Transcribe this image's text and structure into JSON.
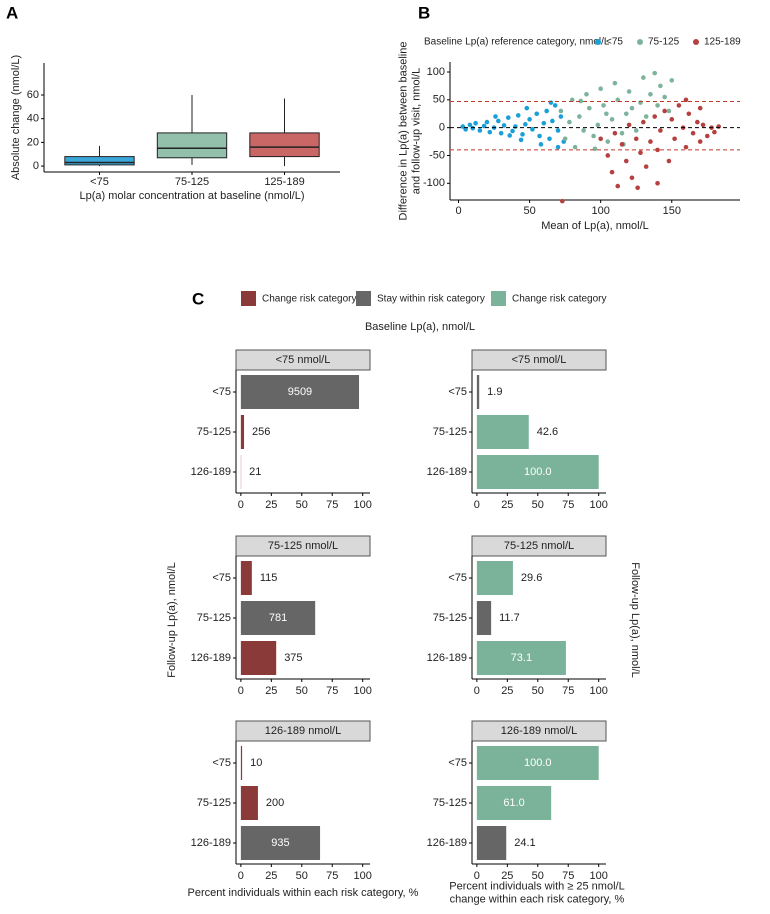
{
  "chart_data": [
    {
      "type": "box",
      "panel_label": "A",
      "x_label": "Lp(a) molar concentration at baseline (nmol/L)",
      "y_label": "Absolute change (nmol/L)",
      "categories": [
        "<75",
        "75-125",
        "125-189"
      ],
      "colors": [
        "#3aa7d9",
        "#92c0aa",
        "#c96666"
      ],
      "boxes": [
        {
          "low": 0,
          "q1": 1,
          "median": 3,
          "q3": 8,
          "high": 17
        },
        {
          "low": 1,
          "q1": 7,
          "median": 15,
          "q3": 28,
          "high": 60
        },
        {
          "low": 0,
          "q1": 8,
          "median": 16,
          "q3": 28,
          "high": 57
        }
      ],
      "ylim": [
        -5,
        87
      ],
      "yticks": [
        0,
        20,
        40,
        60
      ]
    },
    {
      "type": "scatter",
      "panel_label": "B",
      "legend_title": "Baseline Lp(a) reference category, nmol/L",
      "x_label": "Mean of Lp(a), nmol/L",
      "y_label": [
        "Difference in Lp(a) between baseline",
        "and follow-up visit, nmol/L"
      ],
      "xlim": [
        -6,
        198
      ],
      "xticks": [
        0,
        50,
        100,
        150
      ],
      "ylim": [
        -130,
        118
      ],
      "yticks": [
        -100,
        -50,
        0,
        50,
        100
      ],
      "hlines": [
        {
          "y": 47,
          "color": "#c0392b"
        },
        {
          "y": 0,
          "color": "#000000"
        },
        {
          "y": -40,
          "color": "#c0392b"
        }
      ],
      "series": [
        {
          "name": "<75",
          "color": "#1a9fd6",
          "x": [
            3,
            5,
            8,
            10,
            12,
            15,
            18,
            20,
            22,
            25,
            28,
            30,
            32,
            35,
            38,
            40,
            42,
            45,
            47,
            50,
            52,
            55,
            57,
            60,
            62,
            64,
            66,
            68,
            70,
            72,
            74,
            48,
            58,
            36,
            26,
            44,
            65,
            70
          ],
          "y": [
            2,
            -3,
            5,
            -1,
            8,
            -5,
            3,
            10,
            -8,
            0,
            12,
            -10,
            4,
            18,
            -6,
            2,
            22,
            -12,
            6,
            15,
            -3,
            25,
            -15,
            8,
            30,
            -20,
            12,
            40,
            -5,
            20,
            -25,
            35,
            -30,
            -14,
            20,
            -22,
            45,
            -35
          ]
        },
        {
          "name": "75-125",
          "color": "#7cb39a",
          "x": [
            72,
            75,
            78,
            80,
            82,
            85,
            88,
            90,
            92,
            95,
            98,
            100,
            102,
            105,
            108,
            110,
            112,
            115,
            118,
            120,
            122,
            125,
            128,
            130,
            132,
            135,
            138,
            140,
            142,
            145,
            148,
            150,
            86,
            96,
            104,
            116
          ],
          "y": [
            30,
            -20,
            10,
            50,
            -35,
            20,
            -5,
            60,
            35,
            -15,
            5,
            70,
            40,
            -25,
            15,
            80,
            50,
            -10,
            25,
            65,
            35,
            -5,
            45,
            90,
            20,
            60,
            98,
            40,
            75,
            55,
            30,
            85,
            48,
            -38,
            25,
            -30
          ]
        },
        {
          "name": "125-189",
          "color": "#b5403f",
          "x": [
            100,
            105,
            108,
            110,
            112,
            115,
            118,
            120,
            122,
            125,
            128,
            130,
            132,
            135,
            138,
            140,
            142,
            145,
            148,
            150,
            152,
            155,
            158,
            160,
            162,
            165,
            168,
            170,
            172,
            175,
            178,
            180,
            183,
            170,
            160,
            73,
            140,
            126
          ],
          "y": [
            -20,
            -50,
            -80,
            -10,
            -105,
            -30,
            -60,
            5,
            -90,
            -20,
            -45,
            10,
            -70,
            -25,
            20,
            -40,
            -5,
            30,
            -60,
            15,
            -20,
            40,
            0,
            -35,
            25,
            -10,
            10,
            -25,
            5,
            -15,
            0,
            -8,
            2,
            35,
            50,
            -132,
            -100,
            -108
          ]
        }
      ]
    },
    {
      "type": "bar",
      "panel_label": "C",
      "title": "Baseline Lp(a), nmol/L",
      "legend": [
        {
          "name": "Change risk category",
          "color": "#8b3a3a"
        },
        {
          "name": "Stay within risk category",
          "color": "#666666"
        },
        {
          "name": "Change risk category",
          "color": "#7ab39a"
        }
      ],
      "xlim": [
        -4,
        106
      ],
      "xticks": [
        0,
        25,
        50,
        75,
        100
      ],
      "panels": [
        {
          "y_label": "Follow-up Lp(a), nmol/L",
          "x_label": "Percent individuals within each risk category, %",
          "facets": [
            {
              "title": "<75 nmol/L",
              "categories": [
                "<75",
                "75-125",
                "126-189"
              ],
              "values": [
                97,
                2.6,
                0.2
              ],
              "counts": [
                9509,
                256,
                21
              ],
              "colors": [
                "#666666",
                "#8b3a3a",
                "#8b3a3a"
              ]
            },
            {
              "title": "75-125 nmol/L",
              "categories": [
                "<75",
                "75-125",
                "126-189"
              ],
              "values": [
                9,
                61,
                29
              ],
              "counts": [
                115,
                781,
                375
              ],
              "colors": [
                "#8b3a3a",
                "#666666",
                "#8b3a3a"
              ]
            },
            {
              "title": "126-189 nmol/L",
              "categories": [
                "<75",
                "75-125",
                "126-189"
              ],
              "values": [
                1,
                14,
                65
              ],
              "counts": [
                10,
                200,
                935
              ],
              "colors": [
                "#8b3a3a",
                "#8b3a3a",
                "#666666"
              ]
            }
          ]
        },
        {
          "y_label": "Follow-up Lp(a), nmol/L",
          "x_label": [
            "Percent individuals with ≥ 25 nmol/L",
            "change within each risk category, %"
          ],
          "facets": [
            {
              "title": "<75 nmol/L",
              "categories": [
                "<75",
                "75-125",
                "126-189"
              ],
              "values": [
                1.9,
                42.6,
                100
              ],
              "value_labels": [
                "1.9",
                "42.6",
                "100.0"
              ],
              "colors": [
                "#666666",
                "#7ab39a",
                "#7ab39a"
              ]
            },
            {
              "title": "75-125 nmol/L",
              "categories": [
                "<75",
                "75-125",
                "126-189"
              ],
              "values": [
                29.6,
                11.7,
                73.1
              ],
              "value_labels": [
                "29.6",
                "11.7",
                "73.1"
              ],
              "colors": [
                "#7ab39a",
                "#666666",
                "#7ab39a"
              ]
            },
            {
              "title": "126-189 nmol/L",
              "categories": [
                "<75",
                "75-125",
                "126-189"
              ],
              "values": [
                100,
                61,
                24.1
              ],
              "value_labels": [
                "100.0",
                "61.0",
                "24.1"
              ],
              "colors": [
                "#7ab39a",
                "#7ab39a",
                "#666666"
              ]
            }
          ]
        }
      ]
    }
  ]
}
